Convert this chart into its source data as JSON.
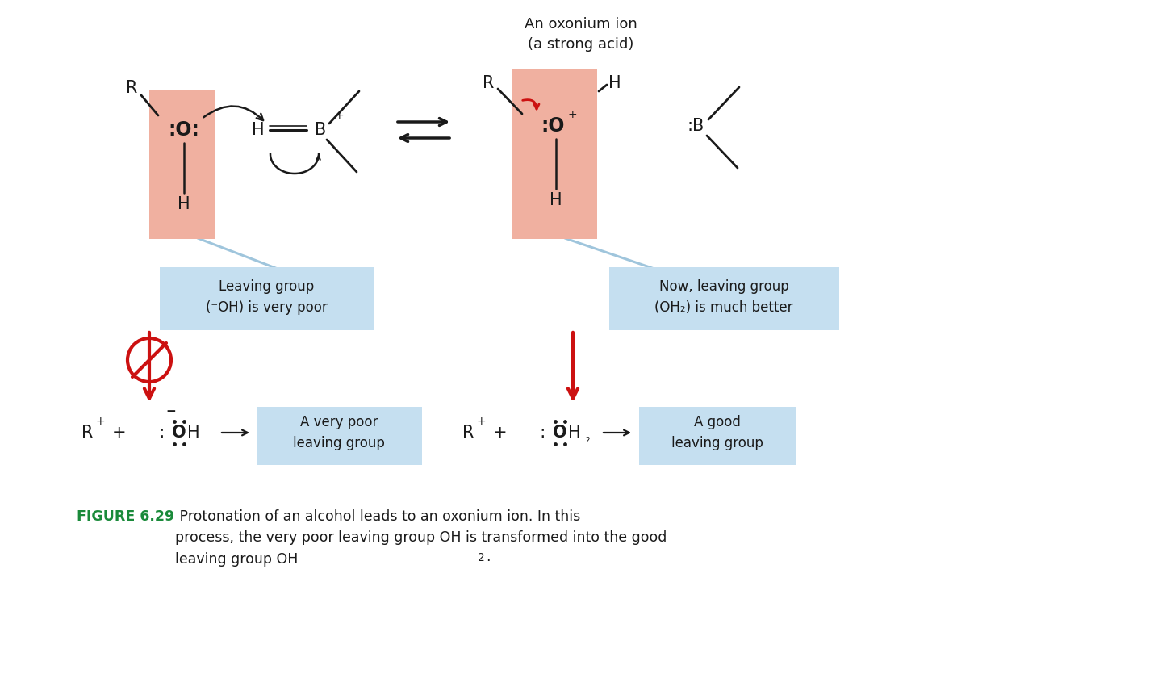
{
  "bg_color": "#ffffff",
  "salmon_color": "#f0b0a0",
  "light_blue_color": "#c5dff0",
  "red_color": "#cc1111",
  "green_color": "#1a8a3a",
  "black_color": "#1a1a1a",
  "title": "An oxonium ion\n(a strong acid)",
  "box1_text": "Leaving group\n(⁻OH) is very poor",
  "box2_text": "Now, leaving group\n(OH₂) is much better",
  "box3_text": "A very poor\nleaving group",
  "box4_text": "A good\nleaving group",
  "fig_bold": "FIGURE 6.29",
  "fig_normal": " Protonation of an alcohol leads to an oxonium ion. In this\nprocess, the very poor leaving group OH is transformed into the good\nleaving group OH",
  "fig_sub": "2",
  "fig_end": "."
}
